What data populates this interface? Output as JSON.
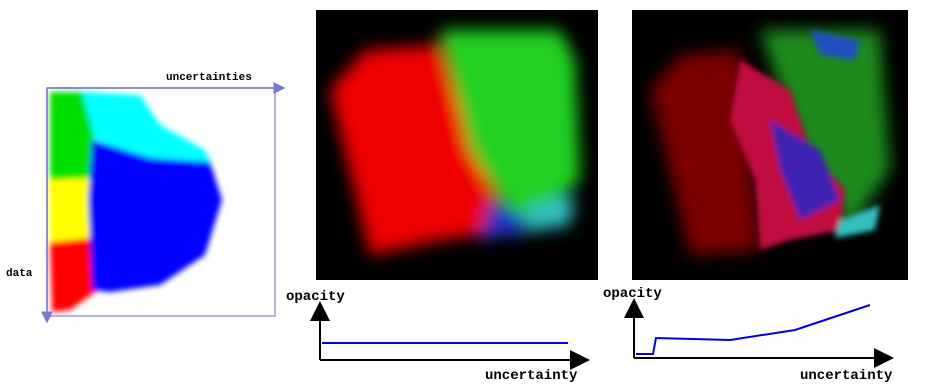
{
  "scatter_panel": {
    "x_label": "uncertainties",
    "y_label": "data"
  },
  "plots": [
    {
      "y_label": "opacity",
      "x_label": "uncertainty"
    },
    {
      "y_label": "opacity",
      "x_label": "uncertainty"
    }
  ]
}
